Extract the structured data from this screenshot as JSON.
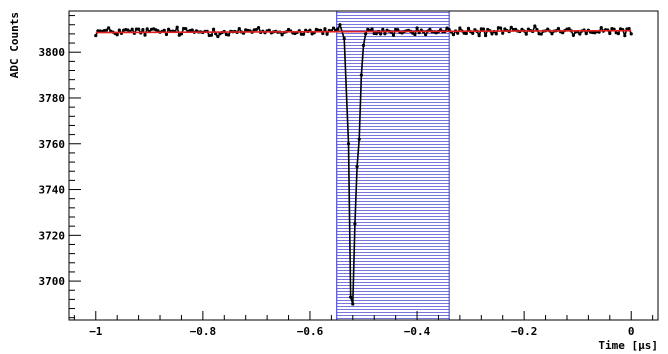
{
  "chart_data": {
    "type": "line",
    "title": "",
    "xlabel": "Time [μs]",
    "ylabel": "ADC Counts",
    "xlim": [
      -1.05,
      0.05
    ],
    "ylim": [
      3683,
      3818
    ],
    "x_ticks": [
      -1,
      -0.8,
      -0.6,
      -0.4,
      -0.2,
      0
    ],
    "x_tick_labels": [
      "−1",
      "−0.8",
      "−0.6",
      "−0.4",
      "−0.2",
      "0"
    ],
    "y_ticks": [
      3700,
      3720,
      3740,
      3760,
      3780,
      3800
    ],
    "y_tick_labels": [
      "3700",
      "3720",
      "3740",
      "3760",
      "3780",
      "3800"
    ],
    "grid": false,
    "legend": "none",
    "highlight_region": {
      "x": [
        -0.55,
        -0.34
      ],
      "color": "#3333cc",
      "pattern": "horizontal hatch"
    },
    "series": [
      {
        "kind": "waveform",
        "color": "#000000",
        "baseline": 3809,
        "noise_amplitude": 1.2,
        "x_start": -1.0,
        "x_end": 0.0,
        "x_step": 0.004,
        "pulse_points": [
          {
            "x": -0.544,
            "y": 3812
          },
          {
            "x": -0.536,
            "y": 3806
          },
          {
            "x": -0.528,
            "y": 3760
          },
          {
            "x": -0.524,
            "y": 3693
          },
          {
            "x": -0.52,
            "y": 3690
          },
          {
            "x": -0.516,
            "y": 3725
          },
          {
            "x": -0.512,
            "y": 3750
          },
          {
            "x": -0.508,
            "y": 3762
          },
          {
            "x": -0.504,
            "y": 3790
          },
          {
            "x": -0.5,
            "y": 3803
          },
          {
            "x": -0.496,
            "y": 3808
          },
          {
            "x": -0.492,
            "y": 3810
          }
        ]
      },
      {
        "kind": "fit",
        "color": "#e02020",
        "x": [
          -1.0,
          0.0
        ],
        "y": [
          3808.6,
          3809.4
        ]
      }
    ]
  }
}
